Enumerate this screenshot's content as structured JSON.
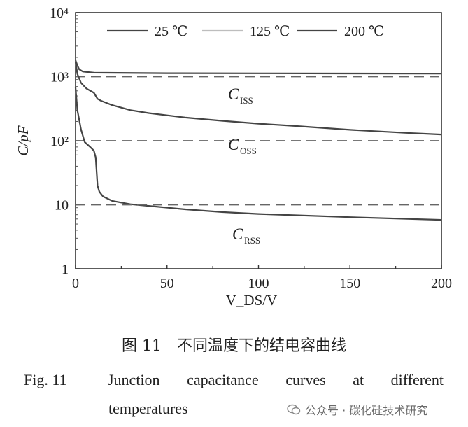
{
  "chart_data": {
    "type": "line",
    "yscale": "log",
    "xlim": [
      0,
      200
    ],
    "ylim": [
      1,
      10000
    ],
    "x_ticks": [
      "0",
      "50",
      "100",
      "150",
      "200"
    ],
    "y_ticks": [
      "1",
      "10",
      "10²",
      "10³",
      "10⁴"
    ],
    "xlabel": "V_DS/V",
    "ylabel": "C/pF",
    "legend": [
      {
        "label": "25 ℃",
        "color": "#444444"
      },
      {
        "label": "125 ℃",
        "color": "#bdbdbd"
      },
      {
        "label": "200 ℃",
        "color": "#444444"
      }
    ],
    "legend_position": "top",
    "annotations": [
      {
        "label": "C",
        "sub": "ISS"
      },
      {
        "label": "C",
        "sub": "OSS"
      },
      {
        "label": "C",
        "sub": "RSS"
      }
    ],
    "series": [
      {
        "group": "ISS",
        "style": "solid",
        "points": [
          [
            0,
            1800
          ],
          [
            1,
            1500
          ],
          [
            2,
            1300
          ],
          [
            4,
            1200
          ],
          [
            10,
            1150
          ],
          [
            50,
            1130
          ],
          [
            100,
            1125
          ],
          [
            150,
            1120
          ],
          [
            200,
            1115
          ]
        ]
      },
      {
        "group": "ISS",
        "style": "dashed",
        "points": [
          [
            0,
            1000
          ],
          [
            200,
            1000
          ]
        ]
      },
      {
        "group": "OSS",
        "style": "solid",
        "points": [
          [
            0,
            1700
          ],
          [
            1,
            1100
          ],
          [
            3,
            800
          ],
          [
            6,
            650
          ],
          [
            10,
            560
          ],
          [
            12,
            450
          ],
          [
            14,
            420
          ],
          [
            20,
            360
          ],
          [
            30,
            300
          ],
          [
            40,
            270
          ],
          [
            60,
            230
          ],
          [
            80,
            205
          ],
          [
            100,
            185
          ],
          [
            120,
            170
          ],
          [
            150,
            148
          ],
          [
            180,
            133
          ],
          [
            200,
            125
          ]
        ]
      },
      {
        "group": "OSS",
        "style": "dashed",
        "points": [
          [
            0,
            100
          ],
          [
            200,
            100
          ]
        ]
      },
      {
        "group": "RSS",
        "style": "solid",
        "points": [
          [
            0,
            680
          ],
          [
            1,
            300
          ],
          [
            3,
            150
          ],
          [
            5,
            95
          ],
          [
            8,
            80
          ],
          [
            10,
            70
          ],
          [
            11,
            55
          ],
          [
            12,
            20
          ],
          [
            13,
            16
          ],
          [
            15,
            13.5
          ],
          [
            20,
            11.5
          ],
          [
            30,
            10.2
          ],
          [
            40,
            9.6
          ],
          [
            60,
            8.5
          ],
          [
            80,
            7.7
          ],
          [
            100,
            7.2
          ],
          [
            150,
            6.4
          ],
          [
            200,
            5.8
          ]
        ]
      },
      {
        "group": "RSS",
        "style": "dashed",
        "points": [
          [
            0,
            10
          ],
          [
            200,
            10
          ]
        ]
      }
    ]
  },
  "caption_cn": "图 11　不同温度下的结电容曲线",
  "caption_en_label": "Fig. 11",
  "caption_en_words": [
    "Junction",
    "capacitance",
    "curves",
    "at",
    "different"
  ],
  "caption_en_line2": "temperatures",
  "watermark": "公众号 · 碳化硅技术研究"
}
